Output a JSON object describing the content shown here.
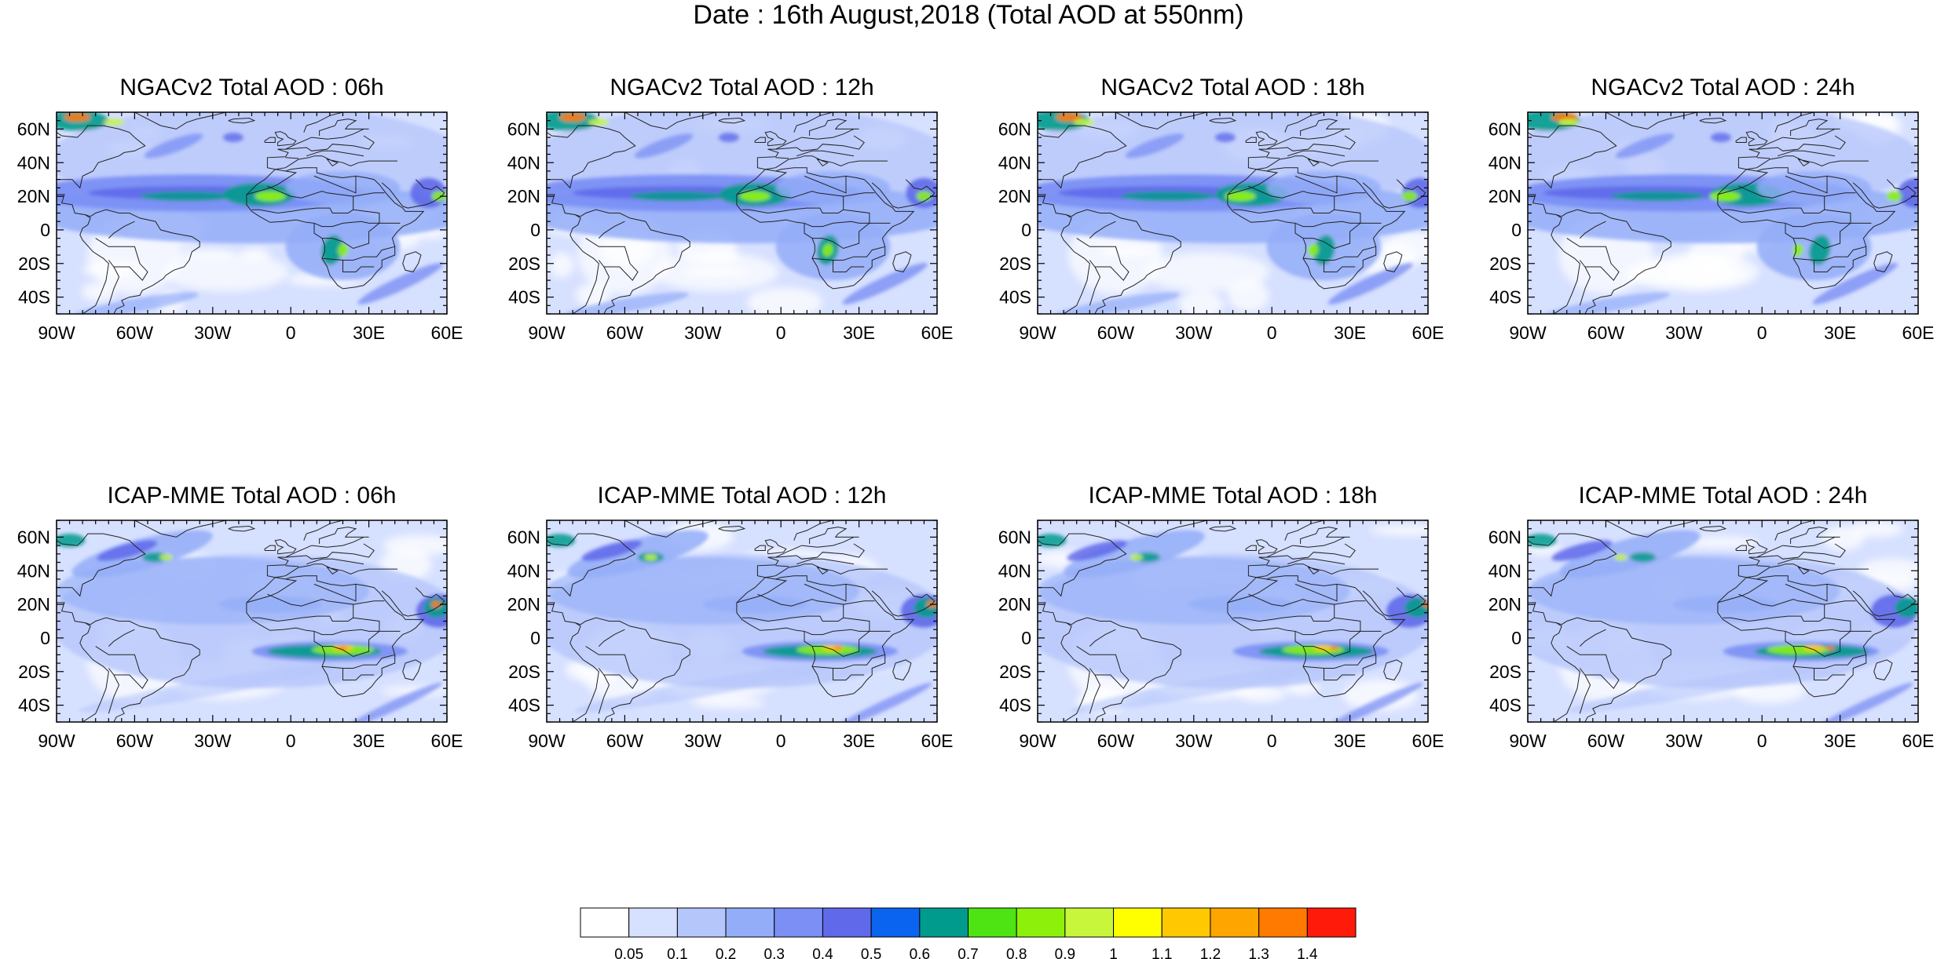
{
  "figure_title": "Date : 16th August,2018 (Total AOD at 550nm)",
  "map_extent": {
    "lon": [
      -90,
      60
    ],
    "lat": [
      -50,
      70
    ]
  },
  "lon_ticks": [
    {
      "value": -90,
      "label": "90W"
    },
    {
      "value": -60,
      "label": "60W"
    },
    {
      "value": -30,
      "label": "30W"
    },
    {
      "value": 0,
      "label": "0"
    },
    {
      "value": 30,
      "label": "30E"
    },
    {
      "value": 60,
      "label": "60E"
    }
  ],
  "lat_ticks": [
    {
      "value": 60,
      "label": "60N"
    },
    {
      "value": 40,
      "label": "40N"
    },
    {
      "value": 20,
      "label": "20N"
    },
    {
      "value": 0,
      "label": "0"
    },
    {
      "value": -20,
      "label": "20S"
    },
    {
      "value": -40,
      "label": "40S"
    }
  ],
  "panels": [
    {
      "id": "ngac-06h",
      "title": "NGACv2 Total AOD : 06h",
      "model": "ngac",
      "hour": 6
    },
    {
      "id": "ngac-12h",
      "title": "NGACv2 Total AOD : 12h",
      "model": "ngac",
      "hour": 12
    },
    {
      "id": "ngac-18h",
      "title": "NGACv2 Total AOD : 18h",
      "model": "ngac",
      "hour": 18
    },
    {
      "id": "ngac-24h",
      "title": "NGACv2 Total AOD : 24h",
      "model": "ngac",
      "hour": 24
    },
    {
      "id": "icap-06h",
      "title": "ICAP-MME Total AOD : 06h",
      "model": "icap",
      "hour": 6
    },
    {
      "id": "icap-12h",
      "title": "ICAP-MME Total AOD : 12h",
      "model": "icap",
      "hour": 12
    },
    {
      "id": "icap-18h",
      "title": "ICAP-MME Total AOD : 18h",
      "model": "icap",
      "hour": 18
    },
    {
      "id": "icap-24h",
      "title": "ICAP-MME Total AOD : 24h",
      "model": "icap",
      "hour": 24
    }
  ],
  "colorbar": {
    "colors": [
      "#ffffff",
      "#d6e0ff",
      "#b5c6fb",
      "#93adf8",
      "#7b8ff4",
      "#5f69ea",
      "#0a64f0",
      "#009b8d",
      "#4ee312",
      "#8df00b",
      "#c7f63a",
      "#ffff00",
      "#ffc800",
      "#ffa500",
      "#ff7a00",
      "#ff1a0a"
    ],
    "labels": [
      "0.05",
      "0.1",
      "0.2",
      "0.3",
      "0.4",
      "0.5",
      "0.6",
      "0.7",
      "0.8",
      "0.9",
      "1",
      "1.1",
      "1.2",
      "1.3",
      "1.4"
    ]
  }
}
